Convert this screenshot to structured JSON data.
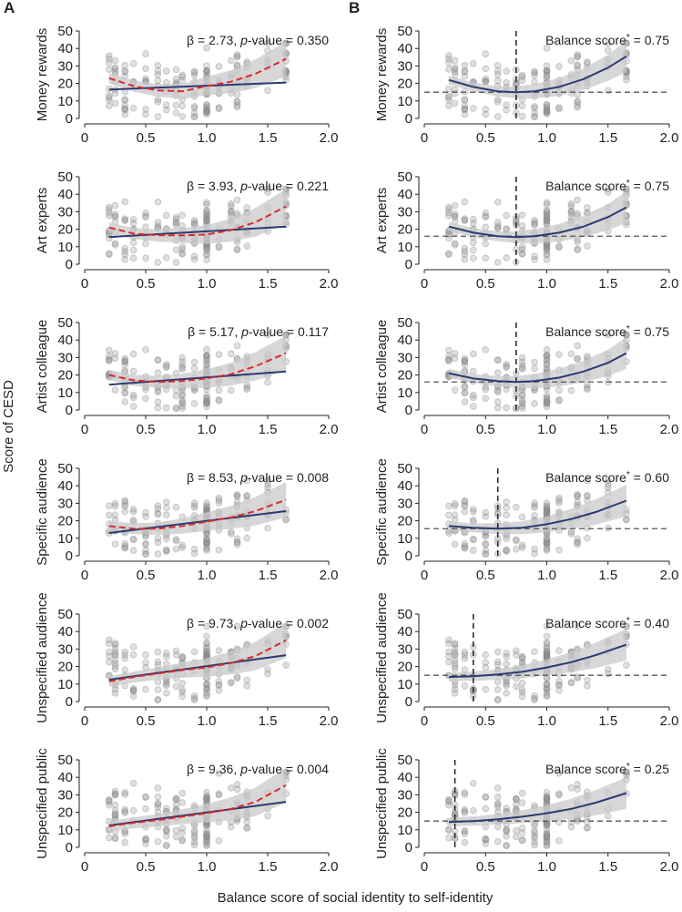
{
  "panel_labels": [
    "A",
    "B"
  ],
  "x_axis_label": "Balance score of social identity to self-identity",
  "y_axis_label": "Score of CESD",
  "colors": {
    "linear_fit": "#2b3a73",
    "loess_fit": "#e0282b",
    "ci_band": "#c9c9c9",
    "points": "#8c8c8c",
    "reference_line": "#555555"
  },
  "chart_data": [
    {
      "type": "scatter",
      "panel": "A",
      "ylabel": "Money rewards",
      "annotation": {
        "beta": "2.73",
        "pvalue": "0.350"
      },
      "xlim": [
        0,
        2.0
      ],
      "ylim": [
        0,
        50
      ],
      "x_ticks": [
        "0",
        "0.5",
        "1.0",
        "1.5",
        "2.0"
      ],
      "y_ticks": [
        "0",
        "10",
        "20",
        "30",
        "40",
        "50"
      ],
      "linear": [
        [
          0.2,
          16.5
        ],
        [
          1.65,
          20.5
        ]
      ],
      "loess": [
        [
          0.2,
          23
        ],
        [
          0.4,
          18.5
        ],
        [
          0.6,
          16
        ],
        [
          0.8,
          15.5
        ],
        [
          1.0,
          18.5
        ],
        [
          1.2,
          21
        ],
        [
          1.4,
          25.5
        ],
        [
          1.65,
          34
        ]
      ]
    },
    {
      "type": "scatter",
      "panel": "A",
      "ylabel": "Art experts",
      "annotation": {
        "beta": "3.93",
        "pvalue": "0.221"
      },
      "xlim": [
        0,
        2.0
      ],
      "ylim": [
        0,
        50
      ],
      "x_ticks": [
        "0",
        "0.5",
        "1.0",
        "1.5",
        "2.0"
      ],
      "y_ticks": [
        "0",
        "10",
        "20",
        "30",
        "40",
        "50"
      ],
      "linear": [
        [
          0.2,
          15.5
        ],
        [
          1.65,
          21.5
        ]
      ],
      "loess": [
        [
          0.2,
          21
        ],
        [
          0.4,
          17.5
        ],
        [
          0.6,
          16.5
        ],
        [
          0.8,
          16.5
        ],
        [
          1.0,
          17
        ],
        [
          1.2,
          19.5
        ],
        [
          1.4,
          24
        ],
        [
          1.65,
          33
        ]
      ]
    },
    {
      "type": "scatter",
      "panel": "A",
      "ylabel": "Artist colleague",
      "annotation": {
        "beta": "5.17",
        "pvalue": "0.117"
      },
      "xlim": [
        0,
        2.0
      ],
      "ylim": [
        0,
        50
      ],
      "x_ticks": [
        "0",
        "0.5",
        "1.0",
        "1.5",
        "2.0"
      ],
      "y_ticks": [
        "0",
        "10",
        "20",
        "30",
        "40",
        "50"
      ],
      "linear": [
        [
          0.2,
          14.5
        ],
        [
          1.65,
          22
        ]
      ],
      "loess": [
        [
          0.2,
          20
        ],
        [
          0.4,
          17
        ],
        [
          0.6,
          16
        ],
        [
          0.8,
          16.5
        ],
        [
          1.0,
          18
        ],
        [
          1.2,
          20.5
        ],
        [
          1.4,
          25
        ],
        [
          1.65,
          32.5
        ]
      ]
    },
    {
      "type": "scatter",
      "panel": "A",
      "ylabel": "Specific audience",
      "annotation": {
        "beta": "8.53",
        "pvalue": "0.008"
      },
      "xlim": [
        0,
        2.0
      ],
      "ylim": [
        0,
        50
      ],
      "x_ticks": [
        "0",
        "0.5",
        "1.0",
        "1.5",
        "2.0"
      ],
      "y_ticks": [
        "0",
        "10",
        "20",
        "30",
        "40",
        "50"
      ],
      "linear": [
        [
          0.2,
          13
        ],
        [
          1.65,
          25.5
        ]
      ],
      "loess": [
        [
          0.2,
          17
        ],
        [
          0.4,
          15.5
        ],
        [
          0.6,
          15.5
        ],
        [
          0.8,
          17
        ],
        [
          1.0,
          19.5
        ],
        [
          1.2,
          22
        ],
        [
          1.4,
          25.5
        ],
        [
          1.65,
          32
        ]
      ]
    },
    {
      "type": "scatter",
      "panel": "A",
      "ylabel": "Unspecified audience",
      "annotation": {
        "beta": "9.73",
        "pvalue": "0.002"
      },
      "xlim": [
        0,
        2.0
      ],
      "ylim": [
        0,
        50
      ],
      "x_ticks": [
        "0",
        "0.5",
        "1.0",
        "1.5",
        "2.0"
      ],
      "y_ticks": [
        "0",
        "10",
        "20",
        "30",
        "40",
        "50"
      ],
      "linear": [
        [
          0.2,
          12.5
        ],
        [
          1.65,
          26.5
        ]
      ],
      "loess": [
        [
          0.2,
          11.5
        ],
        [
          0.4,
          14
        ],
        [
          0.6,
          16
        ],
        [
          0.8,
          18
        ],
        [
          1.0,
          19.5
        ],
        [
          1.2,
          22
        ],
        [
          1.4,
          26
        ],
        [
          1.65,
          35
        ]
      ]
    },
    {
      "type": "scatter",
      "panel": "A",
      "ylabel": "Unspecified public",
      "annotation": {
        "beta": "9.36",
        "pvalue": "0.004"
      },
      "xlim": [
        0,
        2.0
      ],
      "ylim": [
        0,
        50
      ],
      "x_ticks": [
        "0",
        "0.5",
        "1.0",
        "1.5",
        "2.0"
      ],
      "y_ticks": [
        "0",
        "10",
        "20",
        "30",
        "40",
        "50"
      ],
      "linear": [
        [
          0.2,
          12.5
        ],
        [
          1.65,
          26
        ]
      ],
      "loess": [
        [
          0.2,
          12
        ],
        [
          0.4,
          14
        ],
        [
          0.6,
          15.5
        ],
        [
          0.8,
          17.5
        ],
        [
          1.0,
          19.5
        ],
        [
          1.2,
          22
        ],
        [
          1.4,
          26
        ],
        [
          1.65,
          35.5
        ]
      ]
    },
    {
      "type": "scatter",
      "panel": "B",
      "ylabel": "Money rewards",
      "annotation": {
        "balance": "0.75"
      },
      "vline": 0.75,
      "hline": 15,
      "xlim": [
        0,
        2.0
      ],
      "ylim": [
        0,
        50
      ],
      "x_ticks": [
        "0",
        "0.5",
        "1.0",
        "1.5",
        "2.0"
      ],
      "y_ticks": [
        "0",
        "10",
        "20",
        "30",
        "40",
        "50"
      ],
      "fit": [
        [
          0.2,
          22
        ],
        [
          0.4,
          18
        ],
        [
          0.6,
          15.5
        ],
        [
          0.75,
          15
        ],
        [
          0.9,
          15.5
        ],
        [
          1.1,
          18
        ],
        [
          1.3,
          22.5
        ],
        [
          1.5,
          29
        ],
        [
          1.65,
          35.5
        ]
      ]
    },
    {
      "type": "scatter",
      "panel": "B",
      "ylabel": "Art experts",
      "annotation": {
        "balance": "0.75"
      },
      "vline": 0.75,
      "hline": 16,
      "xlim": [
        0,
        2.0
      ],
      "ylim": [
        0,
        50
      ],
      "x_ticks": [
        "0",
        "0.5",
        "1.0",
        "1.5",
        "2.0"
      ],
      "y_ticks": [
        "0",
        "10",
        "20",
        "30",
        "40",
        "50"
      ],
      "fit": [
        [
          0.2,
          21.5
        ],
        [
          0.4,
          18
        ],
        [
          0.6,
          16
        ],
        [
          0.75,
          15.5
        ],
        [
          0.9,
          16
        ],
        [
          1.1,
          18
        ],
        [
          1.3,
          21.5
        ],
        [
          1.5,
          27
        ],
        [
          1.65,
          32.5
        ]
      ]
    },
    {
      "type": "scatter",
      "panel": "B",
      "ylabel": "Artist colleague",
      "annotation": {
        "balance": "0.75"
      },
      "vline": 0.75,
      "hline": 16,
      "xlim": [
        0,
        2.0
      ],
      "ylim": [
        0,
        50
      ],
      "x_ticks": [
        "0",
        "0.5",
        "1.0",
        "1.5",
        "2.0"
      ],
      "y_ticks": [
        "0",
        "10",
        "20",
        "30",
        "40",
        "50"
      ],
      "fit": [
        [
          0.2,
          21
        ],
        [
          0.4,
          18
        ],
        [
          0.6,
          16.5
        ],
        [
          0.75,
          16
        ],
        [
          0.9,
          16.5
        ],
        [
          1.1,
          18.5
        ],
        [
          1.3,
          22
        ],
        [
          1.5,
          27
        ],
        [
          1.65,
          32.5
        ]
      ]
    },
    {
      "type": "scatter",
      "panel": "B",
      "ylabel": "Specific audience",
      "annotation": {
        "balance": "0.60"
      },
      "vline": 0.6,
      "hline": 15.5,
      "xlim": [
        0,
        2.0
      ],
      "ylim": [
        0,
        50
      ],
      "x_ticks": [
        "0",
        "0.5",
        "1.0",
        "1.5",
        "2.0"
      ],
      "y_ticks": [
        "0",
        "10",
        "20",
        "30",
        "40",
        "50"
      ],
      "fit": [
        [
          0.2,
          17
        ],
        [
          0.4,
          16
        ],
        [
          0.6,
          15.5
        ],
        [
          0.8,
          16
        ],
        [
          1.0,
          18
        ],
        [
          1.2,
          21
        ],
        [
          1.4,
          25
        ],
        [
          1.65,
          31.5
        ]
      ]
    },
    {
      "type": "scatter",
      "panel": "B",
      "ylabel": "Unspecified audience",
      "annotation": {
        "balance": "0.40"
      },
      "vline": 0.4,
      "hline": 15,
      "xlim": [
        0,
        2.0
      ],
      "ylim": [
        0,
        50
      ],
      "x_ticks": [
        "0",
        "0.5",
        "1.0",
        "1.5",
        "2.0"
      ],
      "y_ticks": [
        "0",
        "10",
        "20",
        "30",
        "40",
        "50"
      ],
      "fit": [
        [
          0.2,
          14
        ],
        [
          0.4,
          14.5
        ],
        [
          0.6,
          15.5
        ],
        [
          0.8,
          17
        ],
        [
          1.0,
          19.5
        ],
        [
          1.2,
          22.5
        ],
        [
          1.4,
          26.5
        ],
        [
          1.65,
          32.5
        ]
      ]
    },
    {
      "type": "scatter",
      "panel": "B",
      "ylabel": "Unspecified public",
      "annotation": {
        "balance": "0.25"
      },
      "vline": 0.25,
      "hline": 15,
      "xlim": [
        0,
        2.0
      ],
      "ylim": [
        0,
        50
      ],
      "x_ticks": [
        "0",
        "0.5",
        "1.0",
        "1.5",
        "2.0"
      ],
      "y_ticks": [
        "0",
        "10",
        "20",
        "30",
        "40",
        "50"
      ],
      "fit": [
        [
          0.2,
          14.5
        ],
        [
          0.4,
          15
        ],
        [
          0.6,
          16
        ],
        [
          0.8,
          17.5
        ],
        [
          1.0,
          19.5
        ],
        [
          1.2,
          22
        ],
        [
          1.4,
          25.5
        ],
        [
          1.65,
          31
        ]
      ]
    }
  ]
}
